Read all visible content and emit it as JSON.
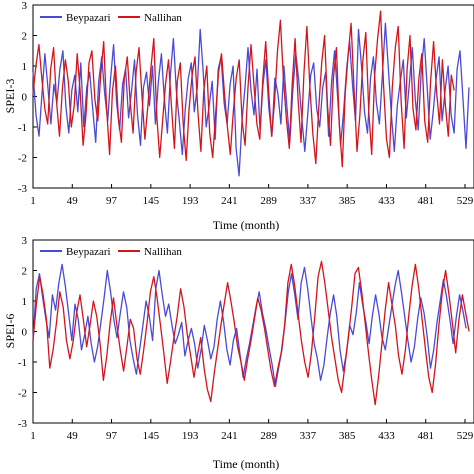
{
  "colors": {
    "beypazari": "#4a4ad8",
    "nallihan": "#d4141c"
  },
  "chart_data": [
    {
      "type": "line",
      "xlabel": "Time (month)",
      "ylabel": "SPEI-3",
      "xlim": [
        1,
        540
      ],
      "ylim": [
        -3,
        3
      ],
      "xticks": [
        1,
        49,
        97,
        145,
        193,
        241,
        289,
        337,
        385,
        433,
        481,
        529
      ],
      "xtick_labels": [
        "1",
        "49",
        "97",
        "145",
        "193",
        "241",
        "289",
        "337",
        "385",
        "433",
        "481",
        "529"
      ],
      "yticks": [
        -3,
        -2,
        -1,
        0,
        1,
        2,
        3
      ],
      "ytick_labels": [
        "-3",
        "-2",
        "-1",
        "0",
        "1",
        "2",
        "3"
      ],
      "legend": "top-left",
      "grid": false,
      "series": [
        {
          "name": "Beypazari",
          "color_key": "beypazari",
          "values": [
            0.8,
            -0.6,
            -1.3,
            0.1,
            1.4,
            0.3,
            -0.9,
            0.4,
            -0.2,
            0.9,
            1.5,
            -0.3,
            -1.2,
            0.2,
            0.7,
            -0.5,
            1.1,
            -1.0,
            0.3,
            0.8,
            -0.4,
            -1.5,
            0.5,
            1.3,
            0.1,
            -0.8,
            0.6,
            1.7,
            -0.2,
            -1.1,
            0.4,
            0.9,
            -0.7,
            0.2,
            1.2,
            -0.6,
            -1.6,
            0.3,
            0.8,
            -0.3,
            1.0,
            -0.9,
            0.5,
            1.4,
            -0.1,
            -1.2,
            0.7,
            1.9,
            0.2,
            -0.8,
            -1.9,
            -0.4,
            0.6,
            1.1,
            -0.5,
            0.3,
            2.2,
            0.8,
            -1.0,
            -0.3,
            0.5,
            -1.4,
            0.9,
            1.3,
            -0.2,
            -0.9,
            0.4,
            1.0,
            -1.7,
            -2.6,
            -0.8,
            0.3,
            1.6,
            0.2,
            -0.6,
            0.9,
            -1.1,
            0.4,
            1.2,
            -0.4,
            -1.3,
            0.6,
            0.1,
            -0.9,
            1.0,
            -0.3,
            -1.5,
            0.2,
            1.4,
            0.5,
            -0.7,
            -1.8,
            -0.6,
            0.7,
            1.1,
            -0.4,
            -1.0,
            0.3,
            0.8,
            -1.3,
            0.5,
            1.5,
            0.0,
            -1.6,
            -0.5,
            0.9,
            1.8,
            0.4,
            -0.8,
            2.2,
            1.0,
            -0.5,
            -1.2,
            0.6,
            1.3,
            -0.2,
            -0.9,
            0.7,
            2.4,
            0.9,
            -0.6,
            -1.8,
            -0.3,
            0.5,
            1.2,
            -0.7,
            0.4,
            1.6,
            -0.1,
            -1.1,
            0.8,
            1.9,
            0.3,
            -1.4,
            -0.5,
            0.6,
            1.3,
            -0.8,
            0.2,
            1.0,
            -0.6,
            -1.2,
            0.9,
            1.5,
            -0.1,
            -1.7,
            0.3
          ],
          "x_step": 3.65
        },
        {
          "name": "Nallihan",
          "color_key": "nallihan",
          "values": [
            0.1,
            1.0,
            1.7,
            0.6,
            -0.4,
            -0.9,
            0.9,
            1.6,
            -0.2,
            -1.3,
            0.3,
            1.2,
            0.5,
            -1.0,
            -0.3,
            1.4,
            0.2,
            -1.6,
            -0.6,
            1.1,
            1.5,
            -0.1,
            -0.8,
            0.7,
            1.8,
            -0.4,
            -1.9,
            0.2,
            1.0,
            -0.7,
            -1.5,
            0.6,
            1.3,
            -0.2,
            -1.2,
            0.8,
            1.6,
            0.0,
            -1.4,
            -0.3,
            0.9,
            1.9,
            -0.6,
            -2.0,
            -0.8,
            0.4,
            1.2,
            -0.3,
            -1.7,
            0.5,
            1.1,
            -0.9,
            -2.1,
            -0.4,
            0.7,
            1.3,
            -0.5,
            -1.8,
            0.2,
            1.0,
            -1.2,
            -2.0,
            -0.6,
            0.8,
            1.4,
            0.1,
            -1.0,
            -1.9,
            -0.5,
            0.6,
            1.2,
            -0.8,
            -1.6,
            0.3,
            1.7,
            0.4,
            -0.9,
            -1.4,
            0.5,
            1.8,
            0.2,
            -1.3,
            -0.2,
            1.5,
            2.5,
            0.6,
            -0.7,
            -1.7,
            0.4,
            1.9,
            -0.1,
            -1.5,
            0.8,
            2.3,
            0.3,
            -1.2,
            -2.2,
            -0.4,
            1.1,
            2.0,
            -0.3,
            -1.6,
            0.6,
            1.6,
            -0.9,
            -2.3,
            0.1,
            1.4,
            2.4,
            0.2,
            -1.8,
            -0.6,
            1.2,
            2.1,
            -0.5,
            -1.9,
            0.7,
            1.9,
            2.8,
            0.4,
            -1.4,
            -2.0,
            0.3,
            1.6,
            2.3,
            -0.2,
            -1.7,
            0.9,
            2.0,
            -0.4,
            -1.1,
            0.6,
            1.4,
            -0.8,
            -1.5,
            0.5,
            1.8,
            0.2,
            -0.9,
            1.2,
            -0.3,
            -1.3,
            0.7,
            0.2
          ],
          "x_step": 3.6
        }
      ]
    },
    {
      "type": "line",
      "xlabel": "Time (month)",
      "ylabel": "SPEI-6",
      "xlim": [
        1,
        540
      ],
      "ylim": [
        -3,
        3
      ],
      "xticks": [
        1,
        49,
        97,
        145,
        193,
        241,
        289,
        337,
        385,
        433,
        481,
        529
      ],
      "xtick_labels": [
        "1",
        "49",
        "97",
        "145",
        "193",
        "241",
        "289",
        "337",
        "385",
        "433",
        "481",
        "529"
      ],
      "yticks": [
        -3,
        -2,
        -1,
        0,
        1,
        2,
        3
      ],
      "ytick_labels": [
        "-3",
        "-2",
        "-1",
        "0",
        "1",
        "2",
        "3"
      ],
      "legend": "top-left",
      "grid": false,
      "series": [
        {
          "name": "Beypazari",
          "color_key": "beypazari",
          "values": [
            -0.3,
            1.4,
            1.9,
            1.1,
            0.4,
            -0.2,
            1.2,
            0.7,
            1.6,
            2.2,
            1.5,
            0.6,
            -0.3,
            0.9,
            0.4,
            -0.6,
            -0.1,
            0.5,
            -0.4,
            -1.0,
            -0.5,
            0.3,
            1.1,
            2.0,
            1.3,
            0.4,
            -0.2,
            0.6,
            1.3,
            0.8,
            -0.3,
            -0.9,
            -1.4,
            -0.6,
            0.2,
            1.0,
            0.5,
            -0.3,
            1.4,
            2.0,
            1.2,
            0.5,
            0.9,
            0.2,
            -0.4,
            -0.1,
            0.3,
            -0.8,
            -0.3,
            0.1,
            -0.4,
            -1.2,
            -0.6,
            0.2,
            -0.3,
            -0.9,
            -0.5,
            0.4,
            1.0,
            0.3,
            -0.6,
            -1.1,
            -0.3,
            0.1,
            -0.7,
            -1.5,
            -0.9,
            -0.4,
            0.2,
            0.8,
            1.3,
            0.6,
            0.1,
            -0.5,
            -1.1,
            -1.8,
            -1.2,
            -0.6,
            0.3,
            1.3,
            1.9,
            1.2,
            0.4,
            1.6,
            2.1,
            1.4,
            0.5,
            -0.4,
            -0.9,
            -1.6,
            -1.1,
            -0.2,
            0.6,
            1.2,
            0.5,
            -0.6,
            -1.3,
            -0.7,
            0.2,
            -0.1,
            0.6,
            1.6,
            0.9,
            0.3,
            -0.4,
            0.5,
            1.2,
            0.6,
            -0.2,
            -0.6,
            0.1,
            0.8,
            1.5,
            2.0,
            1.3,
            0.5,
            -0.3,
            -1.0,
            -0.5,
            0.4,
            1.1,
            0.6,
            -0.2,
            -1.2,
            -0.6,
            0.3,
            1.0,
            1.7,
            1.1,
            0.4,
            -0.4,
            0.5,
            1.2,
            0.7,
            0.1
          ],
          "x_step": 3.95
        },
        {
          "name": "Nallihan",
          "color_key": "nallihan",
          "values": [
            -0.3,
            0.9,
            1.8,
            1.2,
            0.4,
            -1.2,
            -0.6,
            0.3,
            1.3,
            0.8,
            -0.3,
            -0.9,
            -0.3,
            0.6,
            1.2,
            0.4,
            -0.5,
            0.2,
            1.0,
            0.5,
            -0.4,
            -1.6,
            -0.8,
            0.3,
            1.1,
            0.2,
            -0.6,
            -1.3,
            -0.5,
            0.4,
            0.1,
            -0.9,
            -1.4,
            -0.6,
            0.3,
            1.3,
            1.8,
            1.1,
            0.2,
            -0.7,
            -1.7,
            -1.0,
            -0.2,
            0.5,
            1.4,
            0.8,
            -0.1,
            -0.8,
            -1.5,
            -0.8,
            -0.2,
            -1.2,
            -1.9,
            -2.3,
            -1.4,
            -0.6,
            0.2,
            0.9,
            1.6,
            1.0,
            0.3,
            -0.5,
            -1.0,
            -1.6,
            -0.9,
            -0.3,
            0.4,
            1.1,
            0.7,
            0.1,
            -0.6,
            -1.3,
            -1.8,
            -1.2,
            -0.7,
            0.2,
            1.6,
            2.2,
            1.5,
            0.6,
            -0.3,
            -1.0,
            -1.5,
            -0.7,
            0.5,
            1.8,
            2.3,
            1.6,
            0.7,
            -0.2,
            -0.9,
            -1.6,
            -2.0,
            -1.1,
            -0.2,
            0.8,
            1.9,
            2.1,
            1.3,
            0.3,
            -0.7,
            -1.6,
            -2.4,
            -1.5,
            -0.4,
            0.7,
            1.6,
            0.9,
            0.2,
            -0.8,
            -1.4,
            -0.6,
            0.5,
            1.5,
            2.2,
            1.4,
            0.4,
            -0.6,
            -1.5,
            -2.0,
            -1.1,
            0.2,
            1.3,
            2.0,
            1.2,
            0.3,
            -0.7,
            0.4,
            1.2,
            0.6,
            0.0
          ],
          "x_step": 4.1
        }
      ]
    }
  ]
}
